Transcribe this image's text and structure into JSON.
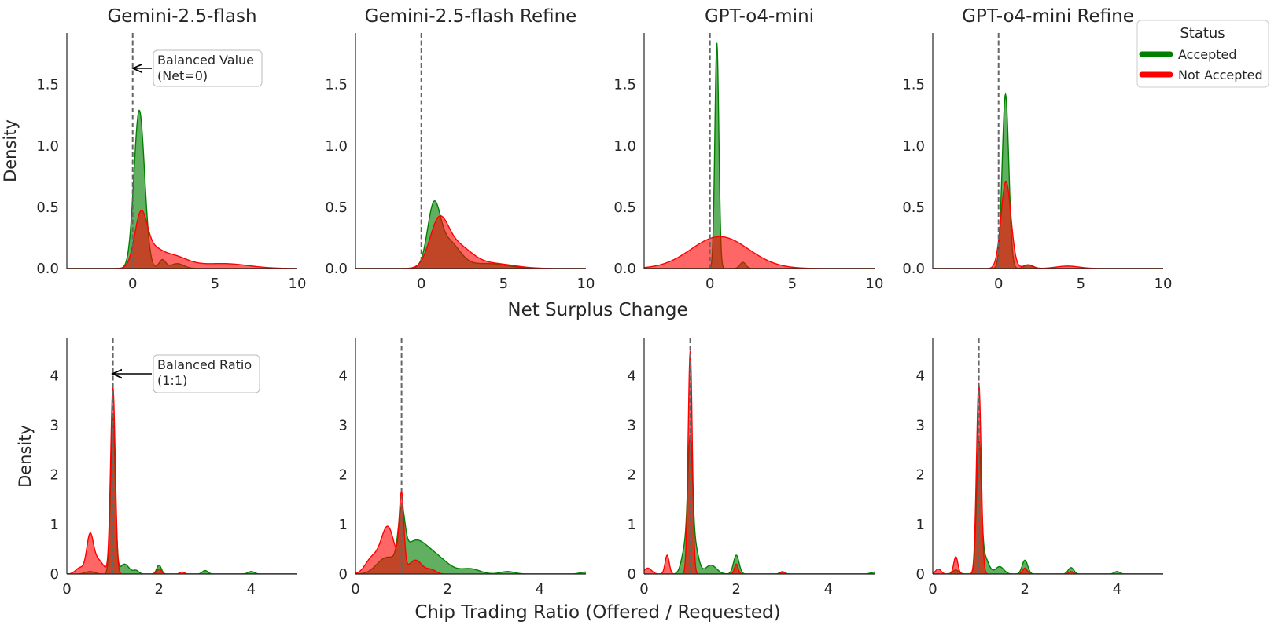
{
  "chart_data": {
    "type": "area",
    "row_xlabels": [
      "Net Surplus Change",
      "Chip Trading Ratio (Offered / Requested)"
    ],
    "ylabel": "Density",
    "colors": {
      "accepted": "#008000",
      "not_accepted": "#ff0000",
      "reference_line": "#666666"
    },
    "legend": {
      "title": "Status",
      "location": "top-right",
      "entries": [
        "Accepted",
        "Not Accepted"
      ]
    },
    "annotations": [
      {
        "row": 0,
        "label": "Balanced Value\n(Net=0)",
        "points_to": [
          0,
          1.65
        ]
      },
      {
        "row": 1,
        "label": "Balanced Ratio\n(1:1)",
        "points_to": [
          1,
          4.05
        ]
      }
    ],
    "panels": [
      {
        "row": 0,
        "col": 0,
        "title": "Gemini-2.5-flash",
        "xlim": [
          -4,
          10
        ],
        "ylim": [
          0,
          1.92
        ],
        "xticks": [
          0,
          5,
          10
        ],
        "xticklabels": [
          "0",
          "5",
          "10"
        ],
        "yticks": [
          0,
          0.5,
          1.0,
          1.5
        ],
        "yticklabels": [
          "0.0",
          "0.5",
          "1.0",
          "1.5"
        ],
        "ref_x": 0,
        "ylabel_shown": true,
        "series": [
          {
            "name": "Accepted",
            "comps": [
              [
                1.29,
                0.4,
                0.32
              ],
              [
                0.07,
                1.8,
                0.2
              ],
              [
                0.04,
                2.7,
                0.4
              ]
            ]
          },
          {
            "name": "Not Accepted",
            "comps": [
              [
                0.43,
                0.5,
                0.38
              ],
              [
                0.08,
                1.3,
                0.45
              ],
              [
                0.11,
                2.2,
                1.0
              ],
              [
                0.04,
                5.5,
                1.5
              ]
            ]
          }
        ]
      },
      {
        "row": 0,
        "col": 1,
        "title": "Gemini-2.5-flash Refine",
        "xlim": [
          -4,
          10
        ],
        "ylim": [
          0,
          1.92
        ],
        "xticks": [
          0,
          5,
          10
        ],
        "xticklabels": [
          "0",
          "5",
          "10"
        ],
        "yticks": [
          0,
          0.5,
          1.0,
          1.5
        ],
        "yticklabels": [
          "0.0",
          "0.5",
          "1.0",
          "1.5"
        ],
        "ref_x": 0,
        "ylabel_shown": false,
        "series": [
          {
            "name": "Accepted",
            "comps": [
              [
                0.44,
                0.75,
                0.38
              ],
              [
                0.22,
                1.6,
                0.7
              ],
              [
                0.04,
                4.0,
                1.2
              ]
            ]
          },
          {
            "name": "Not Accepted",
            "comps": [
              [
                0.33,
                1.05,
                0.55
              ],
              [
                0.18,
                2.1,
                0.9
              ],
              [
                0.04,
                4.3,
                1.3
              ]
            ]
          }
        ]
      },
      {
        "row": 0,
        "col": 2,
        "title": "GPT-o4-mini",
        "xlim": [
          -4,
          10
        ],
        "ylim": [
          0,
          1.92
        ],
        "xticks": [
          0,
          5,
          10
        ],
        "xticklabels": [
          "0",
          "5",
          "10"
        ],
        "yticks": [
          0,
          0.5,
          1.0,
          1.5
        ],
        "yticklabels": [
          "0.0",
          "0.5",
          "1.0",
          "1.5"
        ],
        "ref_x": 0,
        "ylabel_shown": false,
        "series": [
          {
            "name": "Accepted",
            "comps": [
              [
                1.84,
                0.42,
                0.12
              ],
              [
                0.05,
                2.0,
                0.18
              ]
            ]
          },
          {
            "name": "Not Accepted",
            "comps": [
              [
                0.26,
                0.6,
                1.75
              ]
            ]
          }
        ]
      },
      {
        "row": 0,
        "col": 3,
        "title": "GPT-o4-mini Refine",
        "xlim": [
          -4,
          10
        ],
        "ylim": [
          0,
          1.92
        ],
        "xticks": [
          0,
          5,
          10
        ],
        "xticklabels": [
          "0",
          "5",
          "10"
        ],
        "yticks": [
          0,
          0.5,
          1.0,
          1.5
        ],
        "yticklabels": [
          "0.0",
          "0.5",
          "1.0",
          "1.5"
        ],
        "ref_x": 0,
        "ylabel_shown": false,
        "series": [
          {
            "name": "Accepted",
            "comps": [
              [
                1.42,
                0.42,
                0.2
              ],
              [
                0.03,
                1.8,
                0.25
              ]
            ]
          },
          {
            "name": "Not Accepted",
            "comps": [
              [
                0.71,
                0.45,
                0.3
              ],
              [
                0.03,
                1.8,
                0.3
              ],
              [
                0.02,
                4.2,
                0.7
              ]
            ]
          }
        ]
      },
      {
        "row": 1,
        "col": 0,
        "title": "",
        "xlim": [
          0,
          5
        ],
        "ylim": [
          0,
          4.75
        ],
        "xticks": [
          0,
          2,
          4
        ],
        "xticklabels": [
          "0",
          "2",
          "4"
        ],
        "yticks": [
          0,
          1,
          2,
          3,
          4
        ],
        "yticklabels": [
          "0",
          "1",
          "2",
          "3",
          "4"
        ],
        "ref_x": 1,
        "ylabel_shown": true,
        "series": [
          {
            "name": "Accepted",
            "comps": [
              [
                3.15,
                1.0,
                0.05
              ],
              [
                0.2,
                1.25,
                0.1
              ],
              [
                0.07,
                1.5,
                0.06
              ],
              [
                0.18,
                2.0,
                0.05
              ],
              [
                0.07,
                3.0,
                0.06
              ],
              [
                0.05,
                4.0,
                0.07
              ],
              [
                0.05,
                0.5,
                0.1
              ]
            ]
          },
          {
            "name": "Not Accepted",
            "comps": [
              [
                3.75,
                1.0,
                0.05
              ],
              [
                0.65,
                0.5,
                0.07
              ],
              [
                0.3,
                0.65,
                0.14
              ],
              [
                0.12,
                0.28,
                0.09
              ],
              [
                0.1,
                2.0,
                0.05
              ],
              [
                0.04,
                2.5,
                0.05
              ]
            ]
          }
        ]
      },
      {
        "row": 1,
        "col": 1,
        "title": "",
        "xlim": [
          0,
          5
        ],
        "ylim": [
          0,
          4.75
        ],
        "xticks": [
          0,
          2,
          4
        ],
        "xticklabels": [
          "0",
          "2",
          "4"
        ],
        "yticks": [
          0,
          1,
          2,
          3,
          4
        ],
        "yticklabels": [
          "0",
          "1",
          "2",
          "3",
          "4"
        ],
        "ref_x": 1,
        "ylabel_shown": false,
        "series": [
          {
            "name": "Accepted",
            "comps": [
              [
                0.95,
                1.0,
                0.07
              ],
              [
                0.55,
                1.25,
                0.25
              ],
              [
                0.35,
                1.7,
                0.3
              ],
              [
                0.1,
                2.5,
                0.2
              ],
              [
                0.05,
                3.3,
                0.15
              ],
              [
                0.04,
                5.0,
                0.12
              ],
              [
                0.3,
                0.65,
                0.2
              ]
            ]
          },
          {
            "name": "Not Accepted",
            "comps": [
              [
                1.5,
                1.0,
                0.05
              ],
              [
                0.95,
                0.7,
                0.15
              ],
              [
                0.3,
                0.35,
                0.14
              ],
              [
                0.28,
                1.3,
                0.15
              ],
              [
                0.08,
                1.65,
                0.1
              ]
            ]
          }
        ]
      },
      {
        "row": 1,
        "col": 2,
        "title": "",
        "xlim": [
          0,
          5
        ],
        "ylim": [
          0,
          4.75
        ],
        "xticks": [
          0,
          2,
          4
        ],
        "xticklabels": [
          "0",
          "2",
          "4"
        ],
        "yticks": [
          0,
          1,
          2,
          3,
          4
        ],
        "yticklabels": [
          "0",
          "1",
          "2",
          "3",
          "4"
        ],
        "ref_x": 1,
        "ylabel_shown": false,
        "series": [
          {
            "name": "Accepted",
            "comps": [
              [
                2.3,
                1.0,
                0.05
              ],
              [
                0.55,
                0.9,
                0.08
              ],
              [
                0.55,
                1.1,
                0.08
              ],
              [
                0.18,
                1.45,
                0.12
              ],
              [
                0.38,
                2.0,
                0.06
              ],
              [
                0.04,
                3.0,
                0.06
              ],
              [
                0.04,
                5.0,
                0.08
              ]
            ]
          },
          {
            "name": "Not Accepted",
            "comps": [
              [
                4.5,
                1.0,
                0.045
              ],
              [
                0.38,
                0.5,
                0.045
              ],
              [
                0.12,
                0.08,
                0.08
              ],
              [
                0.2,
                2.0,
                0.04
              ],
              [
                0.05,
                3.0,
                0.04
              ]
            ]
          }
        ]
      },
      {
        "row": 1,
        "col": 3,
        "title": "",
        "xlim": [
          0,
          5
        ],
        "ylim": [
          0,
          4.75
        ],
        "xticks": [
          0,
          2,
          4
        ],
        "xticklabels": [
          "0",
          "2",
          "4"
        ],
        "yticks": [
          0,
          1,
          2,
          3,
          4
        ],
        "yticklabels": [
          "0",
          "1",
          "2",
          "3",
          "4"
        ],
        "ref_x": 1,
        "ylabel_shown": false,
        "series": [
          {
            "name": "Accepted",
            "comps": [
              [
                2.55,
                1.0,
                0.05
              ],
              [
                0.35,
                1.12,
                0.09
              ],
              [
                0.15,
                1.45,
                0.09
              ],
              [
                0.28,
                2.0,
                0.06
              ],
              [
                0.13,
                3.0,
                0.06
              ],
              [
                0.05,
                4.0,
                0.06
              ],
              [
                0.08,
                0.5,
                0.07
              ]
            ]
          },
          {
            "name": "Not Accepted",
            "comps": [
              [
                3.85,
                1.0,
                0.05
              ],
              [
                0.35,
                0.5,
                0.045
              ],
              [
                0.1,
                0.12,
                0.06
              ],
              [
                0.12,
                2.0,
                0.05
              ],
              [
                0.05,
                3.0,
                0.05
              ]
            ]
          }
        ]
      }
    ]
  }
}
